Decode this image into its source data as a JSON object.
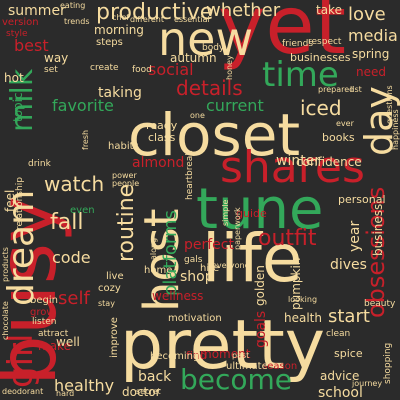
{
  "palette": {
    "background": "#2b2b2b",
    "red": "#c8202a",
    "cream": "#f6dca0",
    "green": "#33a85a",
    "orange": "#f08f5a",
    "darkred": "#9a1a20",
    "gray": "#9c9c9c"
  },
  "words": [
    {
      "text": "busy",
      "color": "red"
    },
    {
      "text": "yet",
      "color": "red"
    },
    {
      "text": "pretty",
      "color": "cream"
    },
    {
      "text": "closet",
      "color": "cream"
    },
    {
      "text": "life",
      "color": "cream"
    },
    {
      "text": "tune",
      "color": "green"
    },
    {
      "text": "new",
      "color": "cream"
    },
    {
      "text": "shares",
      "color": "red"
    },
    {
      "text": "host",
      "color": "cream"
    },
    {
      "text": "time",
      "color": "green"
    },
    {
      "text": "dream",
      "color": "cream"
    },
    {
      "text": "day",
      "color": "cream"
    },
    {
      "text": "become",
      "color": "green"
    },
    {
      "text": "girl",
      "color": "red"
    },
    {
      "text": "productive",
      "color": "cream"
    },
    {
      "text": "milk",
      "color": "green"
    },
    {
      "text": "obsessions",
      "color": "red"
    },
    {
      "text": "details",
      "color": "red"
    },
    {
      "text": "routine",
      "color": "cream"
    },
    {
      "text": "outfit",
      "color": "red"
    },
    {
      "text": "watch",
      "color": "cream"
    },
    {
      "text": "fall",
      "color": "cream"
    },
    {
      "text": "platforms",
      "color": "green"
    },
    {
      "text": "favorite",
      "color": "green"
    },
    {
      "text": "iced",
      "color": "cream"
    },
    {
      "text": "whether",
      "color": "cream"
    },
    {
      "text": "love",
      "color": "cream"
    },
    {
      "text": "social",
      "color": "red"
    },
    {
      "text": "media",
      "color": "cream"
    },
    {
      "text": "summer",
      "color": "cream"
    },
    {
      "text": "best",
      "color": "red"
    },
    {
      "text": "code",
      "color": "cream"
    },
    {
      "text": "shop",
      "color": "cream"
    },
    {
      "text": "self",
      "color": "red"
    },
    {
      "text": "healthy",
      "color": "cream"
    },
    {
      "text": "back",
      "color": "cream"
    },
    {
      "text": "start",
      "color": "cream"
    },
    {
      "text": "goals",
      "color": "red"
    },
    {
      "text": "school",
      "color": "cream"
    },
    {
      "text": "doctor",
      "color": "cream"
    },
    {
      "text": "current",
      "color": "green"
    },
    {
      "text": "almond",
      "color": "red"
    },
    {
      "text": "taking",
      "color": "cream"
    },
    {
      "text": "perfect",
      "color": "red"
    },
    {
      "text": "winter",
      "color": "cream"
    },
    {
      "text": "confidence",
      "color": "cream"
    },
    {
      "text": "golden",
      "color": "cream"
    },
    {
      "text": "pumpkin",
      "color": "cream"
    },
    {
      "text": "wellness",
      "color": "red"
    },
    {
      "text": "health",
      "color": "cream"
    },
    {
      "text": "year",
      "color": "cream"
    },
    {
      "text": "dives",
      "color": "cream"
    },
    {
      "text": "business",
      "color": "cream"
    },
    {
      "text": "motivation",
      "color": "cream"
    },
    {
      "text": "advice",
      "color": "cream"
    },
    {
      "text": "moment",
      "color": "red"
    },
    {
      "text": "make",
      "color": "red"
    },
    {
      "text": "well",
      "color": "cream"
    },
    {
      "text": "need",
      "color": "red"
    },
    {
      "text": "morning",
      "color": "cream"
    },
    {
      "text": "autumn",
      "color": "cream"
    },
    {
      "text": "spring",
      "color": "cream"
    },
    {
      "text": "class",
      "color": "cream"
    },
    {
      "text": "ready",
      "color": "cream"
    },
    {
      "text": "businesses",
      "color": "cream"
    },
    {
      "text": "hot",
      "color": "cream"
    },
    {
      "text": "way",
      "color": "cream"
    },
    {
      "text": "take",
      "color": "cream"
    },
    {
      "text": "books",
      "color": "cream"
    },
    {
      "text": "personal",
      "color": "cream"
    },
    {
      "text": "guide",
      "color": "red"
    },
    {
      "text": "hire",
      "color": "cream"
    },
    {
      "text": "spice",
      "color": "cream"
    },
    {
      "text": "find",
      "color": "red"
    },
    {
      "text": "becoming",
      "color": "cream"
    },
    {
      "text": "season",
      "color": "red"
    },
    {
      "text": "ultimate",
      "color": "cream"
    },
    {
      "text": "topic",
      "color": "green"
    },
    {
      "text": "feel",
      "color": "cream"
    },
    {
      "text": "relationship",
      "color": "cream"
    },
    {
      "text": "home",
      "color": "cream"
    },
    {
      "text": "even",
      "color": "green"
    },
    {
      "text": "cozy",
      "color": "cream"
    },
    {
      "text": "live",
      "color": "cream"
    },
    {
      "text": "begin",
      "color": "cream"
    },
    {
      "text": "grow",
      "color": "red"
    },
    {
      "text": "improve",
      "color": "cream"
    },
    {
      "text": "version",
      "color": "red"
    },
    {
      "text": "style",
      "color": "red"
    },
    {
      "text": "steps",
      "color": "cream"
    },
    {
      "text": "respect",
      "color": "cream"
    },
    {
      "text": "friends",
      "color": "cream"
    },
    {
      "text": "habits",
      "color": "cream"
    },
    {
      "text": "heartbreak",
      "color": "cream"
    },
    {
      "text": "clean",
      "color": "cream"
    },
    {
      "text": "shopping",
      "color": "cream"
    },
    {
      "text": "journey",
      "color": "cream"
    },
    {
      "text": "attract",
      "color": "cream"
    },
    {
      "text": "listen",
      "color": "cream"
    },
    {
      "text": "simple",
      "color": "cream"
    },
    {
      "text": "everyone",
      "color": "cream"
    },
    {
      "text": "secret",
      "color": "cream"
    },
    {
      "text": "create",
      "color": "cream"
    },
    {
      "text": "food",
      "color": "cream"
    },
    {
      "text": "body",
      "color": "cream"
    },
    {
      "text": "drink",
      "color": "cream"
    },
    {
      "text": "set",
      "color": "cream"
    },
    {
      "text": "eating",
      "color": "cream"
    },
    {
      "text": "chef",
      "color": "cream"
    },
    {
      "text": "different",
      "color": "cream"
    },
    {
      "text": "essential",
      "color": "cream"
    },
    {
      "text": "trends",
      "color": "cream"
    },
    {
      "text": "list",
      "color": "cream"
    },
    {
      "text": "prepared",
      "color": "cream"
    },
    {
      "text": "questions",
      "color": "cream"
    },
    {
      "text": "happiness",
      "color": "cream"
    },
    {
      "text": "ever",
      "color": "cream"
    },
    {
      "text": "along",
      "color": "cream"
    },
    {
      "text": "gals",
      "color": "cream"
    },
    {
      "text": "paperwork",
      "color": "cream"
    },
    {
      "text": "past",
      "color": "cream"
    },
    {
      "text": "deodorant",
      "color": "cream"
    },
    {
      "text": "hard",
      "color": "cream"
    },
    {
      "text": "chocolate",
      "color": "cream"
    },
    {
      "text": "products",
      "color": "cream"
    },
    {
      "text": "fresh",
      "color": "cream"
    },
    {
      "text": "power",
      "color": "cream"
    },
    {
      "text": "people",
      "color": "cream"
    },
    {
      "text": "one",
      "color": "cream"
    },
    {
      "text": "beauty",
      "color": "cream"
    },
    {
      "text": "honey",
      "color": "cream"
    },
    {
      "text": "looking",
      "color": "cream"
    },
    {
      "text": "stay",
      "color": "cream"
    }
  ]
}
